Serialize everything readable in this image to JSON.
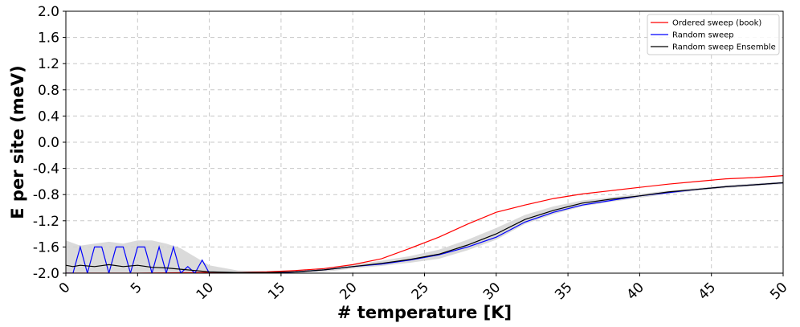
{
  "chart_data": {
    "type": "line",
    "xlabel": "# temperature [K]",
    "ylabel": "E per site (meV)",
    "xlim": [
      0,
      50
    ],
    "ylim": [
      -2.0,
      2.0
    ],
    "xticks": [
      "0",
      "5",
      "10",
      "15",
      "20",
      "25",
      "30",
      "35",
      "40",
      "45",
      "50"
    ],
    "yticks": [
      "2.0",
      "1.6",
      "1.2",
      "0.8",
      "0.4",
      "0.0",
      "-0.4",
      "-0.8",
      "-1.2",
      "-1.6",
      "-2.0"
    ],
    "grid": true,
    "legend_position": "top-right",
    "series": [
      {
        "name": "Ordered sweep (book)",
        "color": "#ff0000",
        "x": [
          0,
          5,
          10,
          12,
          14,
          16,
          18,
          20,
          22,
          24,
          26,
          28,
          30,
          32,
          34,
          36,
          38,
          40,
          42,
          44,
          46,
          48,
          50
        ],
        "y": [
          -2.0,
          -2.0,
          -1.99,
          -1.99,
          -1.98,
          -1.96,
          -1.93,
          -1.87,
          -1.78,
          -1.62,
          -1.45,
          -1.25,
          -1.07,
          -0.96,
          -0.86,
          -0.79,
          -0.74,
          -0.69,
          -0.64,
          -0.6,
          -0.56,
          -0.54,
          -0.51
        ]
      },
      {
        "name": "Random sweep",
        "color": "#0000ff",
        "x": [
          0,
          0.5,
          1,
          1.5,
          2,
          2.5,
          3,
          3.5,
          4,
          4.5,
          5,
          5.5,
          6,
          6.5,
          7,
          7.5,
          8,
          8.5,
          9,
          9.5,
          10,
          11,
          12,
          14,
          16,
          18,
          20,
          22,
          24,
          26,
          28,
          30,
          32,
          34,
          36,
          38,
          40,
          42,
          44,
          46,
          48,
          50
        ],
        "y": [
          -2.0,
          -2.0,
          -1.6,
          -2.0,
          -1.6,
          -1.6,
          -2.0,
          -1.6,
          -1.6,
          -2.0,
          -1.6,
          -1.6,
          -2.0,
          -1.6,
          -2.0,
          -1.6,
          -2.0,
          -1.9,
          -2.0,
          -1.8,
          -2.0,
          -2.0,
          -2.0,
          -2.0,
          -1.98,
          -1.95,
          -1.9,
          -1.86,
          -1.8,
          -1.72,
          -1.6,
          -1.45,
          -1.22,
          -1.07,
          -0.96,
          -0.89,
          -0.82,
          -0.77,
          -0.72,
          -0.68,
          -0.65,
          -0.62
        ]
      },
      {
        "name": "Random sweep Ensemble",
        "color": "#000000",
        "x": [
          0,
          0.5,
          1,
          2,
          3,
          4,
          5,
          6,
          7,
          8,
          9,
          10,
          12,
          14,
          16,
          18,
          20,
          22,
          24,
          26,
          28,
          30,
          32,
          34,
          36,
          38,
          40,
          42,
          44,
          46,
          48,
          50
        ],
        "y": [
          -1.88,
          -1.9,
          -1.88,
          -1.9,
          -1.87,
          -1.9,
          -1.88,
          -1.91,
          -1.92,
          -1.94,
          -1.96,
          -1.98,
          -1.99,
          -1.99,
          -1.98,
          -1.95,
          -1.9,
          -1.85,
          -1.79,
          -1.71,
          -1.57,
          -1.4,
          -1.18,
          -1.04,
          -0.93,
          -0.87,
          -0.82,
          -0.76,
          -0.72,
          -0.68,
          -0.65,
          -0.62
        ]
      }
    ],
    "band": {
      "color": "#d3d3d3",
      "x": [
        0,
        1,
        2,
        3,
        4,
        5,
        6,
        7,
        8,
        9,
        10,
        12,
        14,
        16,
        18,
        20,
        22,
        24,
        26,
        28,
        30,
        32,
        34,
        36,
        38,
        40,
        42,
        44,
        46,
        48,
        50
      ],
      "upper": [
        -1.5,
        -1.58,
        -1.55,
        -1.52,
        -1.55,
        -1.5,
        -1.5,
        -1.55,
        -1.62,
        -1.75,
        -1.88,
        -1.96,
        -1.97,
        -1.96,
        -1.92,
        -1.87,
        -1.81,
        -1.74,
        -1.64,
        -1.49,
        -1.31,
        -1.11,
        -0.98,
        -0.89,
        -0.84,
        -0.79,
        -0.74,
        -0.7,
        -0.66,
        -0.63,
        -0.6
      ],
      "lower": [
        -2.0,
        -2.0,
        -2.0,
        -2.0,
        -2.0,
        -2.0,
        -2.0,
        -2.0,
        -2.0,
        -2.0,
        -2.0,
        -2.0,
        -2.0,
        -2.0,
        -1.98,
        -1.93,
        -1.89,
        -1.84,
        -1.78,
        -1.65,
        -1.49,
        -1.25,
        -1.1,
        -0.98,
        -0.91,
        -0.85,
        -0.79,
        -0.74,
        -0.7,
        -0.67,
        -0.64
      ]
    }
  }
}
